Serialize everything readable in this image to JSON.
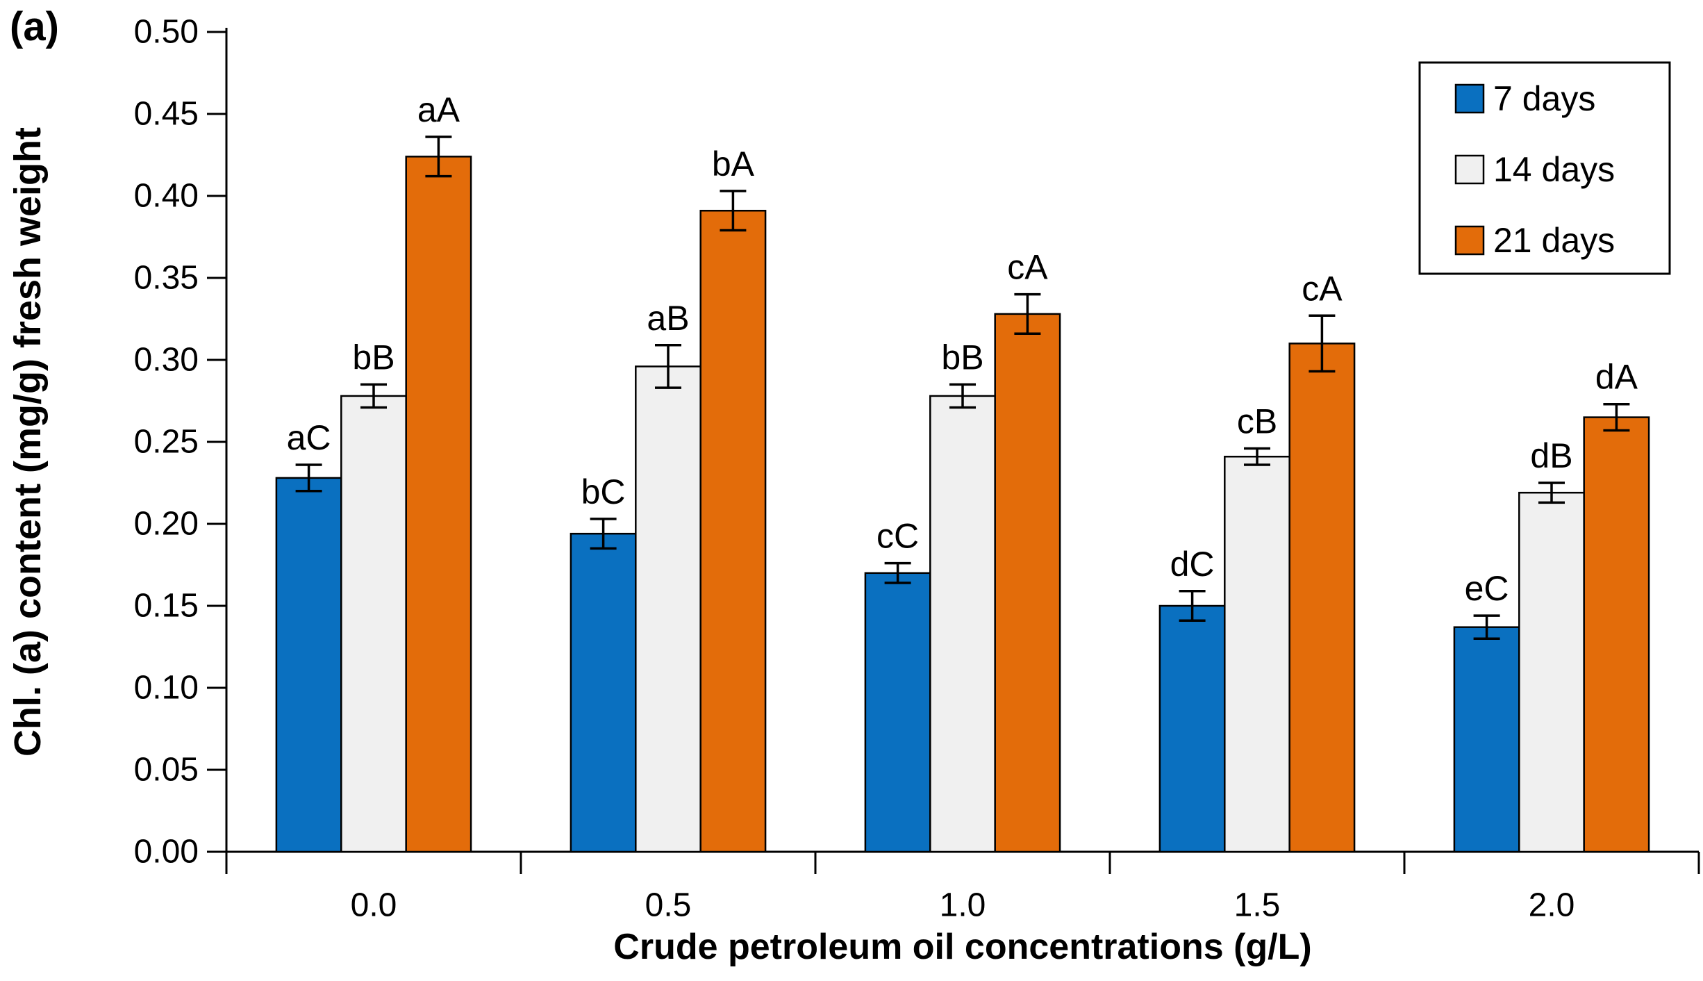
{
  "figure_label": "(a)",
  "chart_data": {
    "type": "bar",
    "title": "",
    "xlabel": "Crude petroleum oil concentrations (g/L)",
    "ylabel": "Chl. (a) content (mg/g) fresh weight",
    "categories": [
      "0.0",
      "0.5",
      "1.0",
      "1.5",
      "2.0"
    ],
    "y_ticks": [
      "0.00",
      "0.05",
      "0.10",
      "0.15",
      "0.20",
      "0.25",
      "0.30",
      "0.35",
      "0.40",
      "0.45",
      "0.50"
    ],
    "ylim": [
      0,
      0.5
    ],
    "grid": false,
    "legend_position": "top-right",
    "bar_outline_color": "#000000",
    "series": [
      {
        "name": "7 days",
        "color": "#0A70C0",
        "values": [
          0.228,
          0.194,
          0.17,
          0.15,
          0.137
        ],
        "errors": [
          0.008,
          0.009,
          0.006,
          0.009,
          0.007
        ],
        "labels": [
          "aC",
          "bC",
          "cC",
          "dC",
          "eC"
        ]
      },
      {
        "name": "14 days",
        "color": "#F0F0F0",
        "values": [
          0.278,
          0.296,
          0.278,
          0.241,
          0.219
        ],
        "errors": [
          0.007,
          0.013,
          0.007,
          0.005,
          0.006
        ],
        "labels": [
          "bB",
          "aB",
          "bB",
          "cB",
          "dB"
        ]
      },
      {
        "name": "21 days",
        "color": "#E36C0A",
        "values": [
          0.424,
          0.391,
          0.328,
          0.31,
          0.265
        ],
        "errors": [
          0.012,
          0.012,
          0.012,
          0.017,
          0.008
        ],
        "labels": [
          "aA",
          "bA",
          "cA",
          "cA",
          "dA"
        ]
      }
    ]
  }
}
